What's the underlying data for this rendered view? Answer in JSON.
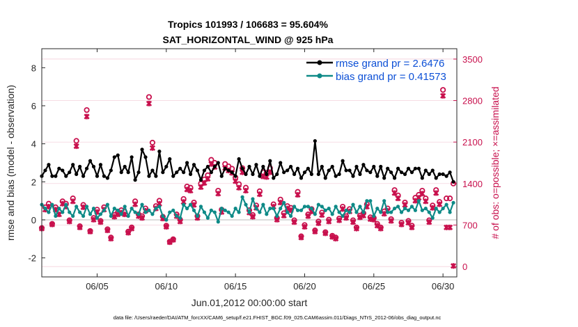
{
  "chart_data": {
    "type": "line",
    "title_line1": "Tropics 101993 / 106683 = 95.604%",
    "title_line2": "SAT_HORIZONTAL_WIND @ 925 hPa",
    "xlabel": "Jun.01,2012 00:00:00 start",
    "ylabel_left": "rmse and bias (model - observation)",
    "ylabel_right": "# of obs: o=possible; ×=assimilated",
    "xlim": [
      1,
      31
    ],
    "ylim_left": [
      -3,
      9
    ],
    "ylim_right": [
      -175,
      3675
    ],
    "x_ticks": [
      5,
      10,
      15,
      20,
      25,
      30
    ],
    "x_tick_labels": [
      "06/05",
      "06/10",
      "06/15",
      "06/20",
      "06/25",
      "06/30"
    ],
    "y_left_ticks": [
      -2,
      0,
      2,
      4,
      6,
      8
    ],
    "y_left_tick_labels": [
      "-2",
      "0",
      "2",
      "4",
      "6",
      "8"
    ],
    "y_right_ticks": [
      0,
      700,
      1400,
      2100,
      2800,
      3500
    ],
    "y_right_tick_labels": [
      "0",
      "700",
      "1400",
      "2100",
      "2800",
      "3500"
    ],
    "legend_position": "top-right",
    "series": [
      {
        "name": "rmse grand pr = 2.6476",
        "axis": "left",
        "color": "#000000",
        "marker": "dot",
        "x": [
          1.0,
          1.25,
          1.5,
          1.75,
          2.0,
          2.25,
          2.5,
          2.75,
          3.0,
          3.25,
          3.5,
          3.75,
          4.0,
          4.25,
          4.5,
          4.75,
          5.0,
          5.25,
          5.5,
          5.75,
          6.0,
          6.25,
          6.5,
          6.75,
          7.0,
          7.25,
          7.5,
          7.75,
          8.0,
          8.25,
          8.5,
          8.75,
          9.0,
          9.25,
          9.5,
          9.75,
          10.0,
          10.25,
          10.5,
          10.75,
          11.0,
          11.25,
          11.5,
          11.75,
          12.0,
          12.25,
          12.5,
          12.75,
          13.0,
          13.25,
          13.5,
          13.75,
          14.0,
          14.25,
          14.5,
          14.75,
          15.0,
          15.25,
          15.5,
          15.75,
          16.0,
          16.25,
          16.5,
          16.75,
          17.0,
          17.25,
          17.5,
          17.75,
          18.0,
          18.25,
          18.5,
          18.75,
          19.0,
          19.25,
          19.5,
          19.75,
          20.0,
          20.25,
          20.5,
          20.75,
          21.0,
          21.25,
          21.5,
          21.75,
          22.0,
          22.25,
          22.5,
          22.75,
          23.0,
          23.25,
          23.5,
          23.75,
          24.0,
          24.25,
          24.5,
          24.75,
          25.0,
          25.25,
          25.5,
          25.75,
          26.0,
          26.25,
          26.5,
          26.75,
          27.0,
          27.25,
          27.5,
          27.75,
          28.0,
          28.25,
          28.5,
          28.75,
          29.0,
          29.25,
          29.5,
          29.75,
          30.0,
          30.25,
          30.5,
          30.75
        ],
        "values": [
          2.3,
          2.6,
          2.9,
          2.3,
          2.3,
          2.7,
          2.6,
          2.3,
          2.5,
          2.9,
          2.4,
          2.8,
          2.3,
          2.7,
          3.1,
          2.8,
          2.3,
          2.9,
          2.3,
          2.2,
          2.6,
          3.3,
          3.4,
          2.5,
          2.8,
          2.5,
          3.3,
          2.1,
          2.5,
          3.7,
          3.3,
          2.3,
          2.6,
          2.3,
          3.6,
          2.5,
          2.8,
          3.2,
          2.3,
          2.5,
          2.7,
          2.5,
          3.0,
          2.4,
          2.9,
          2.6,
          2.1,
          2.6,
          2.8,
          2.5,
          2.8,
          3.0,
          2.3,
          2.7,
          2.6,
          2.5,
          2.3,
          3.2,
          2.7,
          2.4,
          2.8,
          2.4,
          2.9,
          2.3,
          2.8,
          2.4,
          3.1,
          2.2,
          2.4,
          3.0,
          2.5,
          2.6,
          2.8,
          2.4,
          2.7,
          2.2,
          2.5,
          2.7,
          2.4,
          4.15,
          2.4,
          2.8,
          2.2,
          2.6,
          2.8,
          2.3,
          2.4,
          3.1,
          2.6,
          2.6,
          2.3,
          2.8,
          2.4,
          2.9,
          2.6,
          2.5,
          2.8,
          2.3,
          2.8,
          2.2,
          2.7,
          2.5,
          2.2,
          2.7,
          2.5,
          2.4,
          2.7,
          2.5,
          2.7,
          2.7,
          2.2,
          2.6,
          2.4,
          2.6,
          2.2,
          2.4,
          2.4,
          2.3,
          2.5,
          2.0
        ]
      },
      {
        "name": "bias grand pr = 0.41573",
        "axis": "left",
        "color": "#0e8a87",
        "marker": "dot",
        "x": [
          1.0,
          1.25,
          1.5,
          1.75,
          2.0,
          2.25,
          2.5,
          2.75,
          3.0,
          3.25,
          3.5,
          3.75,
          4.0,
          4.25,
          4.5,
          4.75,
          5.0,
          5.25,
          5.5,
          5.75,
          6.0,
          6.25,
          6.5,
          6.75,
          7.0,
          7.25,
          7.5,
          7.75,
          8.0,
          8.25,
          8.5,
          8.75,
          9.0,
          9.25,
          9.5,
          9.75,
          10.0,
          10.25,
          10.5,
          10.75,
          11.0,
          11.25,
          11.5,
          11.75,
          12.0,
          12.25,
          12.5,
          12.75,
          13.0,
          13.25,
          13.5,
          13.75,
          14.0,
          14.25,
          14.5,
          14.75,
          15.0,
          15.25,
          15.5,
          15.75,
          16.0,
          16.25,
          16.5,
          16.75,
          17.0,
          17.25,
          17.5,
          17.75,
          18.0,
          18.25,
          18.5,
          18.75,
          19.0,
          19.25,
          19.5,
          19.75,
          20.0,
          20.25,
          20.5,
          20.75,
          21.0,
          21.25,
          21.5,
          21.75,
          22.0,
          22.25,
          22.5,
          22.75,
          23.0,
          23.25,
          23.5,
          23.75,
          24.0,
          24.25,
          24.5,
          24.75,
          25.0,
          25.25,
          25.5,
          25.75,
          26.0,
          26.25,
          26.5,
          26.75,
          27.0,
          27.25,
          27.5,
          27.75,
          28.0,
          28.25,
          28.5,
          28.75,
          29.0,
          29.25,
          29.5,
          29.75,
          30.0,
          30.25,
          30.5,
          30.75
        ],
        "values": [
          0.8,
          0.6,
          0.4,
          0.8,
          0.2,
          0.6,
          0.4,
          0.8,
          0.4,
          0.2,
          0.7,
          0.4,
          0.2,
          0.7,
          0.3,
          0.6,
          0.1,
          0.3,
          0.5,
          0.8,
          0.2,
          0.6,
          0.5,
          0.3,
          0.7,
          0.2,
          0.6,
          0.4,
          0.3,
          0.8,
          0.4,
          0.5,
          0.3,
          0.6,
          0.7,
          0.2,
          0.0,
          0.4,
          0.5,
          0.2,
          0.1,
          0.8,
          0.6,
          0.8,
          0.5,
          0.2,
          0.7,
          0.4,
          0.1,
          0.5,
          0.4,
          -0.1,
          0.6,
          0.5,
          0.4,
          0.2,
          0.6,
          0.4,
          1.2,
          0.8,
          0.4,
          1.1,
          0.6,
          0.4,
          0.8,
          0.3,
          0.6,
          0.6,
          0.2,
          0.6,
          0.9,
          0.4,
          0.2,
          0.7,
          0.5,
          0.5,
          0.7,
          0.7,
          0.6,
          0.3,
          0.8,
          0.7,
          0.5,
          0.6,
          0.3,
          0.7,
          0.4,
          0.2,
          0.5,
          0.4,
          0.8,
          0.4,
          0.7,
          0.4,
          1.0,
          1.0,
          0.2,
          0.6,
          0.4,
          1.0,
          0.4,
          0.4,
          0.6,
          0.7,
          0.4,
          0.6,
          0.5,
          0.7,
          0.5,
          1.0,
          0.5,
          0.6,
          0.4,
          0.1,
          0.6,
          0.4,
          0.6,
          0.8,
          0.4,
          0.9
        ]
      },
      {
        "name": "# of obs possible",
        "axis": "right",
        "color": "#c8104d",
        "marker": "o",
        "x": [
          1.0,
          1.25,
          1.5,
          1.75,
          2.0,
          2.25,
          2.5,
          2.75,
          3.0,
          3.25,
          3.5,
          3.75,
          4.0,
          4.25,
          4.5,
          4.75,
          5.0,
          5.25,
          5.5,
          5.75,
          6.0,
          6.25,
          6.5,
          6.75,
          7.0,
          7.25,
          7.5,
          7.75,
          8.0,
          8.25,
          8.5,
          8.75,
          9.0,
          9.25,
          9.5,
          9.75,
          10.0,
          10.25,
          10.5,
          10.75,
          11.0,
          11.25,
          11.5,
          11.75,
          12.0,
          12.25,
          12.5,
          12.75,
          13.0,
          13.25,
          13.5,
          13.75,
          14.0,
          14.25,
          14.5,
          14.75,
          15.0,
          15.25,
          15.5,
          15.75,
          16.0,
          16.25,
          16.5,
          16.75,
          17.0,
          17.25,
          17.5,
          17.75,
          18.0,
          18.25,
          18.5,
          18.75,
          19.0,
          19.25,
          19.5,
          19.75,
          20.0,
          20.25,
          20.5,
          20.75,
          21.0,
          21.25,
          21.5,
          21.75,
          22.0,
          22.25,
          22.5,
          22.75,
          23.0,
          23.25,
          23.5,
          23.75,
          24.0,
          24.25,
          24.5,
          24.75,
          25.0,
          25.25,
          25.5,
          25.75,
          26.0,
          26.25,
          26.5,
          26.75,
          27.0,
          27.25,
          27.5,
          27.75,
          28.0,
          28.25,
          28.5,
          28.75,
          29.0,
          29.25,
          29.5,
          29.75,
          30.0,
          30.25,
          30.5,
          30.75
        ],
        "values": [
          650,
          1000,
          1060,
          720,
          1000,
          920,
          1100,
          1060,
          780,
          1150,
          2120,
          680,
          1040,
          2640,
          600,
          820,
          960,
          770,
          1000,
          630,
          490,
          870,
          920,
          950,
          920,
          590,
          660,
          1100,
          880,
          850,
          980,
          2860,
          2090,
          1020,
          1110,
          840,
          690,
          420,
          460,
          880,
          790,
          1140,
          1350,
          1330,
          1080,
          850,
          1400,
          1470,
          1540,
          1800,
          1750,
          1280,
          960,
          1730,
          1690,
          1650,
          1500,
          1390,
          1660,
          1330,
          950,
          870,
          1030,
          1270,
          1590,
          1580,
          1660,
          1050,
          820,
          1130,
          900,
          1020,
          990,
          780,
          1260,
          510,
          700,
          880,
          970,
          610,
          760,
          910,
          580,
          790,
          520,
          490,
          810,
          1010,
          850,
          970,
          780,
          660,
          860,
          900,
          1050,
          830,
          820,
          720,
          660,
          930,
          980,
          800,
          1290,
          1200,
          740,
          1080,
          770,
          690,
          1160,
          1210,
          1280,
          1150,
          780,
          1030,
          1290,
          1090,
          2980,
          1150,
          1150,
          1400
        ]
      },
      {
        "name": "# of obs assimilated",
        "axis": "right",
        "color": "#c8104d",
        "marker": "x",
        "x": [
          1.0,
          1.25,
          1.5,
          1.75,
          2.0,
          2.25,
          2.5,
          2.75,
          3.0,
          3.25,
          3.5,
          3.75,
          4.0,
          4.25,
          4.5,
          4.75,
          5.0,
          5.25,
          5.5,
          5.75,
          6.0,
          6.25,
          6.5,
          6.75,
          7.0,
          7.25,
          7.5,
          7.75,
          8.0,
          8.25,
          8.5,
          8.75,
          9.0,
          9.25,
          9.5,
          9.75,
          10.0,
          10.25,
          10.5,
          10.75,
          11.0,
          11.25,
          11.5,
          11.75,
          12.0,
          12.25,
          12.5,
          12.75,
          13.0,
          13.25,
          13.5,
          13.75,
          14.0,
          14.25,
          14.5,
          14.75,
          15.0,
          15.25,
          15.5,
          15.75,
          16.0,
          16.25,
          16.5,
          16.75,
          17.0,
          17.25,
          17.5,
          17.75,
          18.0,
          18.25,
          18.5,
          18.75,
          19.0,
          19.25,
          19.5,
          19.75,
          20.0,
          20.25,
          20.5,
          20.75,
          21.0,
          21.25,
          21.5,
          21.75,
          22.0,
          22.25,
          22.5,
          22.75,
          23.0,
          23.25,
          23.5,
          23.75,
          24.0,
          24.25,
          24.5,
          24.75,
          25.0,
          25.25,
          25.5,
          25.75,
          26.0,
          26.25,
          26.5,
          26.75,
          27.0,
          27.25,
          27.5,
          27.75,
          28.0,
          28.25,
          28.5,
          28.75,
          29.0,
          29.25,
          29.5,
          29.75,
          30.0,
          30.25,
          30.5,
          30.75
        ],
        "values": [
          640,
          960,
          1010,
          710,
          960,
          880,
          1060,
          1010,
          760,
          1100,
          2030,
          660,
          1000,
          2530,
          590,
          790,
          920,
          750,
          960,
          610,
          470,
          840,
          880,
          910,
          880,
          570,
          640,
          1050,
          850,
          820,
          940,
          2750,
          2000,
          980,
          1060,
          810,
          670,
          410,
          450,
          850,
          760,
          1090,
          1300,
          1280,
          1040,
          820,
          1340,
          1410,
          1480,
          1730,
          1680,
          1230,
          920,
          1660,
          1620,
          1580,
          1440,
          1330,
          1590,
          1280,
          910,
          840,
          990,
          1220,
          1520,
          1510,
          1590,
          1010,
          790,
          1080,
          860,
          980,
          950,
          750,
          1210,
          490,
          670,
          850,
          930,
          590,
          730,
          870,
          560,
          760,
          500,
          470,
          780,
          970,
          820,
          930,
          750,
          640,
          830,
          860,
          1010,
          800,
          790,
          690,
          640,
          890,
          940,
          770,
          1240,
          1150,
          710,
          1040,
          740,
          660,
          1110,
          1160,
          1230,
          1100,
          750,
          990,
          1240,
          1050,
          2880,
          660,
          660,
          10
        ]
      }
    ]
  },
  "footer": {
    "data_file": "data file: /Users/raeder/DAI/ATM_forcXX/CAM6_setup/f.e21.FHIST_BGC.f09_025.CAM6assim.011/Diags_NTrS_2012-06/obs_diag_output.nc"
  },
  "colors": {
    "rmse": "#000000",
    "bias": "#0e8a87",
    "obs": "#c8104d",
    "legend_text": "#0b4fd6",
    "zero_line": "#d0d0d0"
  }
}
